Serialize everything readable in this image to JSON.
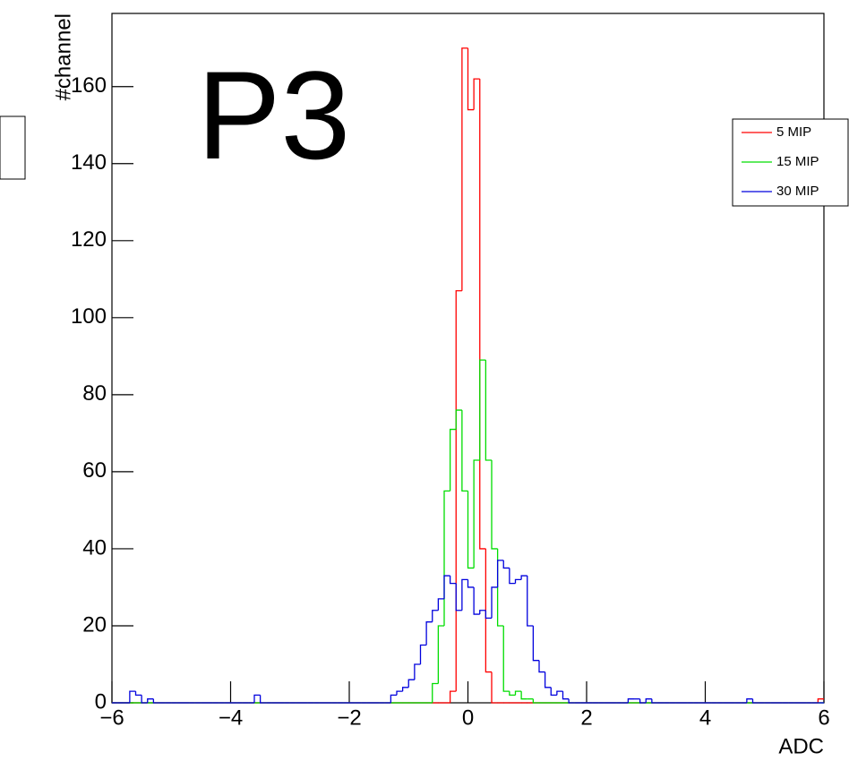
{
  "chart_data": {
    "type": "histogram",
    "annotation": "P3",
    "x_label": "ADC",
    "y_label": "#channel",
    "xlim": [
      -6,
      6
    ],
    "ylim": [
      0,
      179
    ],
    "xticks": [
      {
        "value": -6,
        "label": "−6"
      },
      {
        "value": -4,
        "label": "−4"
      },
      {
        "value": -2,
        "label": "−2"
      },
      0,
      2,
      4,
      6
    ],
    "yticks": [
      0,
      20,
      40,
      60,
      80,
      100,
      120,
      140,
      160
    ],
    "bins": [
      -6,
      -5.9,
      -5.8,
      -5.7,
      -5.6,
      -5.5,
      -5.4,
      -5.3,
      -5.2,
      -5.1,
      -5,
      -4.9,
      -4.8,
      -4.7,
      -4.6,
      -4.5,
      -4.4,
      -4.3,
      -4.2,
      -4.1,
      -4,
      -3.9,
      -3.8,
      -3.7,
      -3.6,
      -3.5,
      -3.4,
      -3.3,
      -3.2,
      -3.1,
      -3,
      -2.9,
      -2.8,
      -2.7,
      -2.6,
      -2.5,
      -2.4,
      -2.3,
      -2.2,
      -2.1,
      -2,
      -1.9,
      -1.8,
      -1.7,
      -1.6,
      -1.5,
      -1.4,
      -1.3,
      -1.2,
      -1.1,
      -1,
      -0.9,
      -0.8,
      -0.7,
      -0.6,
      -0.5,
      -0.4,
      -0.3,
      -0.2,
      -0.1,
      0,
      0.1,
      0.2,
      0.3,
      0.4,
      0.5,
      0.6,
      0.7,
      0.8,
      0.9,
      1,
      1.1,
      1.2,
      1.3,
      1.4,
      1.5,
      1.6,
      1.7,
      1.8,
      1.9,
      2,
      2.1,
      2.2,
      2.3,
      2.4,
      2.5,
      2.6,
      2.7,
      2.8,
      2.9,
      3,
      3.1,
      3.2,
      3.3,
      3.4,
      3.5,
      3.6,
      3.7,
      3.8,
      3.9,
      4,
      4.1,
      4.2,
      4.3,
      4.4,
      4.5,
      4.6,
      4.7,
      4.8,
      4.9,
      5,
      5.1,
      5.2,
      5.3,
      5.4,
      5.5,
      5.6,
      5.7,
      5.8,
      5.9,
      6
    ],
    "series": [
      {
        "name": "5 MIP",
        "color": "#ff0000",
        "values": [
          0,
          0,
          0,
          0,
          0,
          0,
          0,
          0,
          0,
          0,
          0,
          0,
          0,
          0,
          0,
          0,
          0,
          0,
          0,
          0,
          0,
          0,
          0,
          0,
          0,
          0,
          0,
          0,
          0,
          0,
          0,
          0,
          0,
          0,
          0,
          0,
          0,
          0,
          0,
          0,
          0,
          0,
          0,
          0,
          0,
          0,
          0,
          0,
          0,
          0,
          0,
          0,
          0,
          0,
          0,
          0,
          0,
          3,
          107,
          170,
          154,
          162,
          40,
          8,
          0,
          0,
          0,
          0,
          0,
          0,
          0,
          0,
          0,
          0,
          0,
          0,
          0,
          0,
          0,
          0,
          0,
          0,
          0,
          0,
          0,
          0,
          0,
          0,
          0,
          0,
          0,
          0,
          0,
          0,
          0,
          0,
          0,
          0,
          0,
          0,
          0,
          0,
          0,
          0,
          0,
          0,
          0,
          0,
          0,
          0,
          0,
          0,
          0,
          0,
          0,
          0,
          0,
          0,
          0,
          1
        ]
      },
      {
        "name": "15 MIP",
        "color": "#00dd00",
        "values": [
          0,
          0,
          0,
          0,
          0,
          0,
          0,
          0,
          0,
          0,
          0,
          0,
          0,
          0,
          0,
          0,
          0,
          0,
          0,
          0,
          0,
          0,
          0,
          0,
          0,
          0,
          0,
          0,
          0,
          0,
          0,
          0,
          0,
          0,
          0,
          0,
          0,
          0,
          0,
          0,
          0,
          0,
          0,
          0,
          0,
          0,
          0,
          0,
          0,
          0,
          0,
          0,
          0,
          0,
          5,
          20,
          55,
          71,
          76,
          55,
          35,
          63,
          89,
          63,
          40,
          20,
          3,
          2,
          3,
          1,
          1,
          0,
          0,
          0,
          0,
          0,
          0,
          0,
          0,
          0,
          0,
          0,
          0,
          0,
          0,
          0,
          0,
          0,
          0,
          0,
          0,
          0,
          0,
          0,
          0,
          0,
          0,
          0,
          0,
          0,
          0,
          0,
          0,
          0,
          0,
          0,
          0,
          0,
          0,
          0,
          0,
          0,
          0,
          0,
          0,
          0,
          0,
          0,
          0,
          0
        ]
      },
      {
        "name": "30 MIP",
        "color": "#0000dd",
        "values": [
          0,
          0,
          0,
          3,
          2,
          0,
          1,
          0,
          0,
          0,
          0,
          0,
          0,
          0,
          0,
          0,
          0,
          0,
          0,
          0,
          0,
          0,
          0,
          0,
          2,
          0,
          0,
          0,
          0,
          0,
          0,
          0,
          0,
          0,
          0,
          0,
          0,
          0,
          0,
          0,
          0,
          0,
          0,
          0,
          0,
          0,
          0,
          2,
          3,
          4,
          6,
          10,
          15,
          21,
          24,
          27,
          33,
          31,
          24,
          32,
          30,
          23,
          24,
          22,
          30,
          37,
          35,
          31,
          32,
          33,
          20,
          11,
          8,
          4,
          2,
          3,
          1,
          0,
          0,
          0,
          0,
          0,
          0,
          0,
          0,
          0,
          0,
          1,
          1,
          0,
          1,
          0,
          0,
          0,
          0,
          0,
          0,
          0,
          0,
          0,
          0,
          0,
          0,
          0,
          0,
          0,
          0,
          1,
          0,
          0,
          0,
          0,
          0,
          0,
          0,
          0,
          0,
          0,
          0,
          0
        ]
      }
    ]
  }
}
